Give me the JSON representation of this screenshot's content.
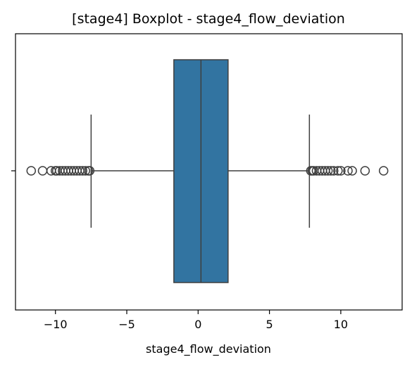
{
  "chart_data": {
    "type": "boxplot",
    "title": "[stage4] Boxplot - stage4_flow_deviation",
    "xlabel": "stage4_flow_deviation",
    "ylabel": "",
    "xlim": [
      -12.8,
      14.3
    ],
    "xticks": [
      -10,
      -5,
      0,
      5,
      10
    ],
    "xtick_labels": [
      "−10",
      "−5",
      "0",
      "5",
      "10"
    ],
    "orientation": "horizontal",
    "grid": false,
    "box": {
      "whisker_low": -7.5,
      "q1": -1.7,
      "median": 0.2,
      "q3": 2.1,
      "whisker_high": 7.8
    },
    "outliers": [
      -11.7,
      -10.9,
      -10.3,
      -10.0,
      -9.9,
      -9.7,
      -9.5,
      -9.3,
      -9.1,
      -8.9,
      -8.7,
      -8.5,
      -8.3,
      -8.1,
      -7.9,
      -7.7,
      -7.6,
      7.9,
      8.0,
      8.1,
      8.3,
      8.5,
      8.7,
      8.9,
      9.1,
      9.3,
      9.5,
      9.8,
      10.0,
      10.5,
      10.8,
      11.7,
      13.0
    ],
    "colors": {
      "box_fill": "#3274a1",
      "line": "#3f3f3f",
      "axes": "#000000"
    }
  }
}
